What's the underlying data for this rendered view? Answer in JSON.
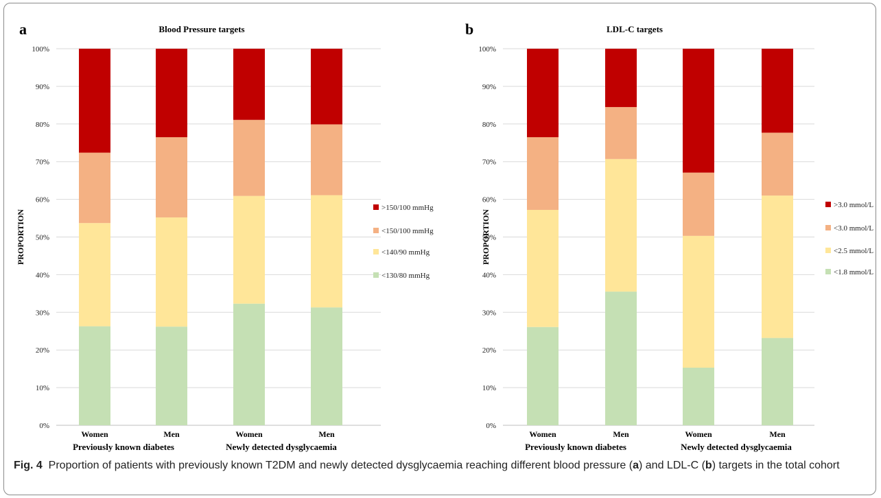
{
  "chart_data": [
    {
      "type": "bar",
      "stacked": true,
      "panel_letter": "a",
      "title": "Blood Pressure targets",
      "ylabel": "PROPORTION",
      "ylim": [
        0,
        100
      ],
      "y_ticks": [
        "0%",
        "10%",
        "20%",
        "30%",
        "40%",
        "50%",
        "60%",
        "70%",
        "80%",
        "90%",
        "100%"
      ],
      "categories": [
        "Women",
        "Men",
        "Women",
        "Men"
      ],
      "groups": [
        "Previously known diabetes",
        "Newly detected dysglycaemia"
      ],
      "series": [
        {
          "name": "<130/80 mmHg",
          "color": "#c5e0b4",
          "values": [
            26.3,
            26.2,
            32.3,
            31.3
          ]
        },
        {
          "name": "<140/90 mmHg",
          "color": "#ffe699",
          "values": [
            27.4,
            29.0,
            28.6,
            29.8
          ]
        },
        {
          "name": "<150/100 mmHg",
          "color": "#f4b183",
          "values": [
            18.7,
            21.3,
            20.2,
            18.8
          ]
        },
        {
          "name": ">150/100 mmHg",
          "color": "#c00000",
          "values": [
            27.6,
            23.5,
            18.9,
            20.1
          ]
        }
      ],
      "legend_position": "right",
      "grid": true
    },
    {
      "type": "bar",
      "stacked": true,
      "panel_letter": "b",
      "title": "LDL-C targets",
      "ylabel": "PROPORTION",
      "ylim": [
        0,
        100
      ],
      "y_ticks": [
        "0%",
        "10%",
        "20%",
        "30%",
        "40%",
        "50%",
        "60%",
        "70%",
        "80%",
        "90%",
        "100%"
      ],
      "categories": [
        "Women",
        "Men",
        "Women",
        "Men"
      ],
      "groups": [
        "Previously known diabetes",
        "Newly detected dysglycaemia"
      ],
      "series": [
        {
          "name": "<1.8 mmol/L",
          "color": "#c5e0b4",
          "values": [
            26.1,
            35.5,
            15.3,
            23.2
          ]
        },
        {
          "name": "<2.5 mmol/L",
          "color": "#ffe699",
          "values": [
            31.1,
            35.2,
            35.0,
            37.8
          ]
        },
        {
          "name": "<3.0 mmol/L",
          "color": "#f4b183",
          "values": [
            19.3,
            13.8,
            16.8,
            16.7
          ]
        },
        {
          "name": ">3.0 mmol/L",
          "color": "#c00000",
          "values": [
            23.5,
            15.5,
            32.9,
            22.3
          ]
        }
      ],
      "legend_position": "right",
      "grid": true
    }
  ],
  "caption": {
    "label": "Fig. 4",
    "part1": "Proportion of patients with previously known T2DM and newly detected dysglycaemia reaching different blood pressure (",
    "a": "a",
    "part2": ") and LDL-C (",
    "b": "b",
    "part3": ") targets in the total cohort"
  }
}
